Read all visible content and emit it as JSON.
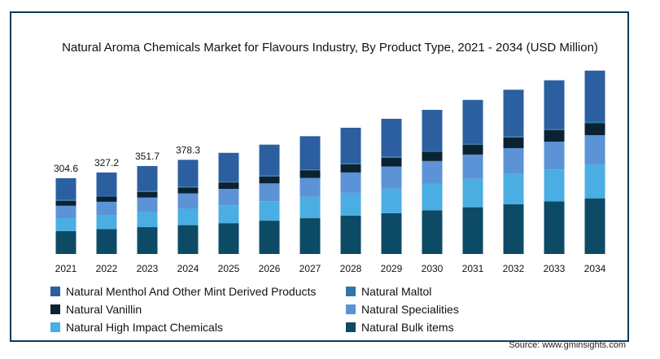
{
  "chart_data": {
    "type": "bar",
    "stacked": true,
    "title": "Natural Aroma Chemicals Market for Flavours Industry, By Product Type, 2021 - 2034 (USD Million)",
    "categories": [
      "2021",
      "2022",
      "2023",
      "2024",
      "2025",
      "2026",
      "2027",
      "2028",
      "2029",
      "2030",
      "2031",
      "2032",
      "2033",
      "2034"
    ],
    "totals_labels": [
      "304.6",
      "327.2",
      "351.7",
      "378.3",
      "",
      "",
      "",
      "",
      "",
      "",
      "",
      "",
      "",
      ""
    ],
    "series": [
      {
        "name": "Natural Bulk items",
        "color": "#0d4a66",
        "values": [
          92,
          100,
          108,
          116,
          124,
          134,
          144,
          154,
          164,
          176,
          188,
          200,
          212,
          224
        ]
      },
      {
        "name": "Natural High Impact Chemicals",
        "color": "#4aaee3",
        "values": [
          52,
          56,
          61,
          66,
          72,
          78,
          86,
          92,
          100,
          106,
          114,
          122,
          128,
          136
        ]
      },
      {
        "name": "Natural Specialities",
        "color": "#5b93d6",
        "values": [
          50,
          54,
          58,
          62,
          66,
          72,
          76,
          82,
          88,
          92,
          98,
          104,
          112,
          118
        ]
      },
      {
        "name": "Natural Vanillin",
        "color": "#0b2233",
        "values": [
          20,
          21,
          23,
          24,
          26,
          28,
          31,
          33,
          35,
          38,
          40,
          43,
          46,
          49
        ]
      },
      {
        "name": "Natural Maltol",
        "color": "#2b78a8",
        "values": [
          3,
          3,
          3,
          3,
          3,
          3,
          3,
          4,
          4,
          4,
          4,
          4,
          5,
          5
        ]
      },
      {
        "name": "Natural Menthol And Other Mint Derived Products",
        "color": "#2b5fa0",
        "values": [
          88,
          94,
          101,
          108,
          116,
          125,
          134,
          143,
          153,
          164,
          176,
          188,
          196,
          206
        ]
      }
    ],
    "ylim": [
      0,
      760
    ],
    "grid": false,
    "legend_position": "bottom"
  },
  "legend": [
    {
      "label": "Natural Menthol And Other Mint Derived Products",
      "color": "#2b5fa0"
    },
    {
      "label": "Natural Maltol",
      "color": "#2b78a8"
    },
    {
      "label": "Natural Vanillin",
      "color": "#0b2233"
    },
    {
      "label": "Natural Specialities",
      "color": "#5b93d6"
    },
    {
      "label": "Natural High Impact Chemicals",
      "color": "#4aaee3"
    },
    {
      "label": "Natural Bulk items",
      "color": "#0d4a66"
    }
  ],
  "source": "Source: www.gminsights.com"
}
